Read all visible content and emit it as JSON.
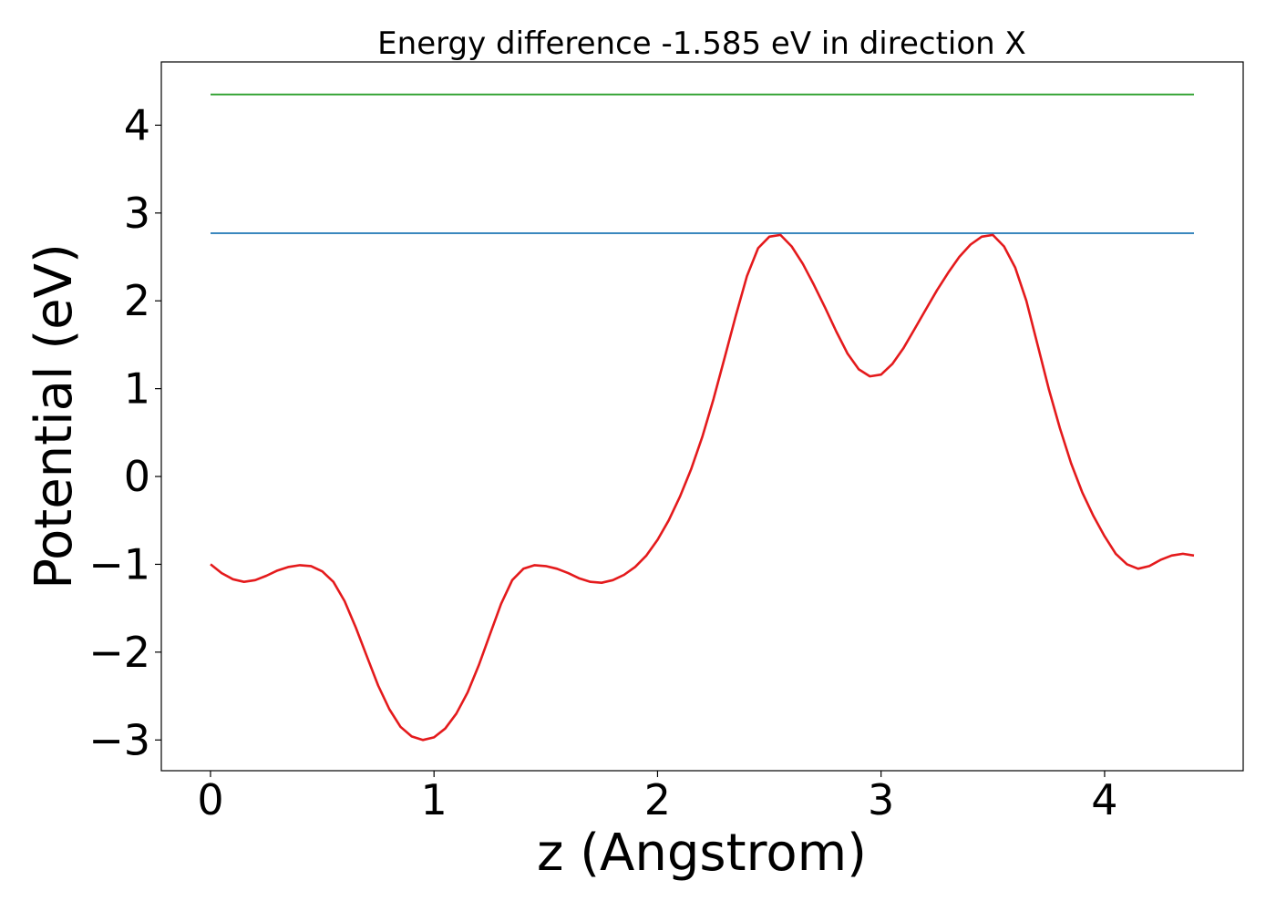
{
  "chart_data": {
    "type": "line",
    "title": "Energy difference -1.585 eV in direction X",
    "xlabel": "z (Angstrom)",
    "ylabel": "Potential (eV)",
    "xlim": [
      -0.22,
      4.62
    ],
    "ylim": [
      -3.35,
      4.72
    ],
    "xticks": [
      0,
      1,
      2,
      3,
      4
    ],
    "xtick_labels": [
      "0",
      "1",
      "2",
      "3",
      "4"
    ],
    "yticks": [
      -3,
      -2,
      -1,
      0,
      1,
      2,
      3,
      4
    ],
    "ytick_labels": [
      "−3",
      "−2",
      "−1",
      "0",
      "1",
      "2",
      "3",
      "4"
    ],
    "grid": false,
    "legend": "none",
    "series": [
      {
        "color": "#2ca02c",
        "x": [
          0,
          4.4
        ],
        "y": [
          4.35,
          4.35
        ]
      },
      {
        "color": "#1f77b4",
        "x": [
          0,
          4.4
        ],
        "y": [
          2.77,
          2.77
        ]
      },
      {
        "color": "#e41a1c",
        "x": [
          0.0,
          0.05,
          0.1,
          0.15,
          0.2,
          0.25,
          0.3,
          0.35,
          0.4,
          0.45,
          0.5,
          0.55,
          0.6,
          0.65,
          0.7,
          0.75,
          0.8,
          0.85,
          0.9,
          0.95,
          1.0,
          1.05,
          1.1,
          1.15,
          1.2,
          1.25,
          1.3,
          1.35,
          1.4,
          1.45,
          1.5,
          1.55,
          1.6,
          1.65,
          1.7,
          1.75,
          1.8,
          1.85,
          1.9,
          1.95,
          2.0,
          2.05,
          2.1,
          2.15,
          2.2,
          2.25,
          2.3,
          2.35,
          2.4,
          2.45,
          2.5,
          2.55,
          2.6,
          2.65,
          2.7,
          2.75,
          2.8,
          2.85,
          2.9,
          2.95,
          3.0,
          3.05,
          3.1,
          3.15,
          3.2,
          3.25,
          3.3,
          3.35,
          3.4,
          3.45,
          3.5,
          3.55,
          3.6,
          3.65,
          3.7,
          3.75,
          3.8,
          3.85,
          3.9,
          3.95,
          4.0,
          4.05,
          4.1,
          4.15,
          4.2,
          4.25,
          4.3,
          4.35,
          4.4
        ],
        "y": [
          -1.0,
          -1.1,
          -1.17,
          -1.2,
          -1.18,
          -1.13,
          -1.07,
          -1.03,
          -1.01,
          -1.02,
          -1.08,
          -1.2,
          -1.42,
          -1.72,
          -2.05,
          -2.38,
          -2.65,
          -2.85,
          -2.96,
          -3.0,
          -2.97,
          -2.87,
          -2.7,
          -2.46,
          -2.15,
          -1.8,
          -1.45,
          -1.18,
          -1.05,
          -1.01,
          -1.02,
          -1.05,
          -1.1,
          -1.16,
          -1.2,
          -1.21,
          -1.18,
          -1.12,
          -1.03,
          -0.9,
          -0.72,
          -0.5,
          -0.23,
          0.08,
          0.45,
          0.88,
          1.35,
          1.83,
          2.28,
          2.6,
          2.73,
          2.75,
          2.62,
          2.42,
          2.18,
          1.92,
          1.65,
          1.4,
          1.22,
          1.14,
          1.16,
          1.28,
          1.46,
          1.68,
          1.9,
          2.12,
          2.32,
          2.5,
          2.64,
          2.73,
          2.75,
          2.62,
          2.38,
          2.0,
          1.5,
          1.0,
          0.55,
          0.15,
          -0.18,
          -0.45,
          -0.68,
          -0.88,
          -1.0,
          -1.05,
          -1.02,
          -0.95,
          -0.9,
          -0.88,
          -0.9
        ]
      }
    ]
  }
}
